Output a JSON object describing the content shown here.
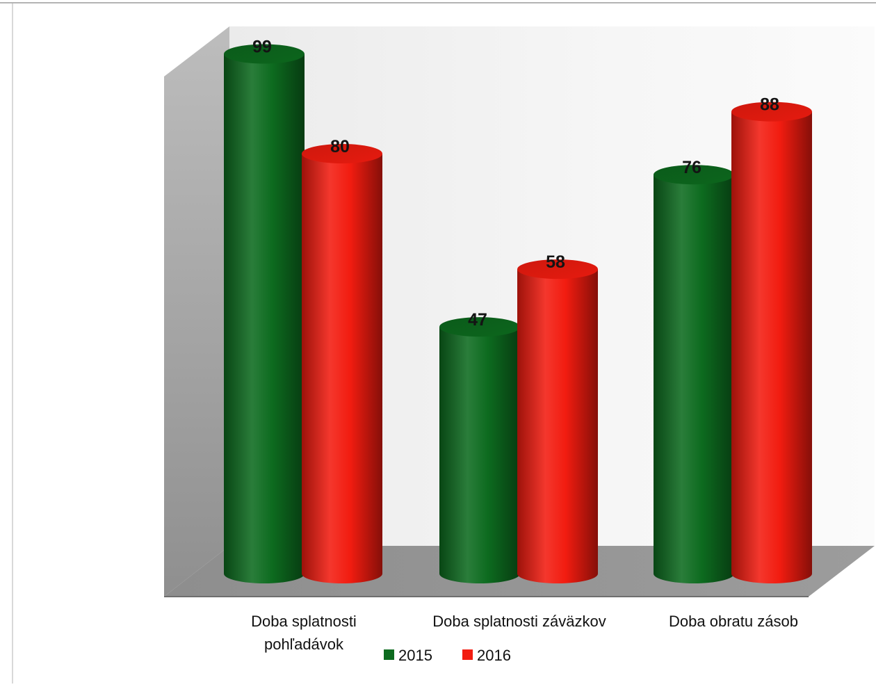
{
  "chart_data": {
    "type": "bar",
    "style": "3d-cylinder",
    "categories": [
      [
        "Doba splatnosti",
        "pohľadávok"
      ],
      [
        "Doba splatnosti záväzkov"
      ],
      [
        "Doba obratu zásob"
      ]
    ],
    "series": [
      {
        "name": "2015",
        "color": "#0d6b1f",
        "values": [
          99,
          47,
          76
        ]
      },
      {
        "name": "2016",
        "color": "#f21c10",
        "values": [
          80,
          58,
          88
        ]
      }
    ],
    "ylim": [
      0,
      110
    ],
    "grid": false,
    "data_labels": true,
    "legend_position": "bottom"
  }
}
